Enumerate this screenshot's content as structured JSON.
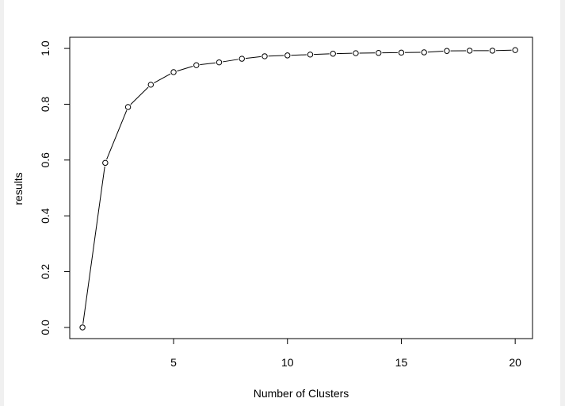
{
  "chart_data": {
    "type": "line",
    "title": "",
    "xlabel": "Number of Clusters",
    "ylabel": "results",
    "x": [
      1,
      2,
      3,
      4,
      5,
      6,
      7,
      8,
      9,
      10,
      11,
      12,
      13,
      14,
      15,
      16,
      17,
      18,
      19,
      20
    ],
    "series": [
      {
        "values": [
          0.0,
          0.59,
          0.79,
          0.87,
          0.915,
          0.94,
          0.95,
          0.963,
          0.972,
          0.975,
          0.978,
          0.981,
          0.983,
          0.984,
          0.985,
          0.986,
          0.991,
          0.992,
          0.992,
          0.994
        ],
        "marker": "open-circle",
        "line_style": "solid"
      }
    ],
    "xlim": [
      0.44,
      20.76
    ],
    "ylim": [
      -0.04,
      1.04
    ],
    "x_ticks": [
      5,
      10,
      15,
      20
    ],
    "y_ticks": [
      0.0,
      0.2,
      0.4,
      0.6,
      0.8,
      1.0
    ],
    "x_tick_labels": [
      "5",
      "10",
      "15",
      "20"
    ],
    "y_tick_labels": [
      "0.0",
      "0.2",
      "0.4",
      "0.6",
      "0.8",
      "1.0"
    ],
    "grid": false,
    "legend": "none",
    "colors": {
      "line": "#000000",
      "marker_stroke": "#000000",
      "marker_fill": "#ffffff",
      "frame_border": "#f0f0f0"
    }
  }
}
